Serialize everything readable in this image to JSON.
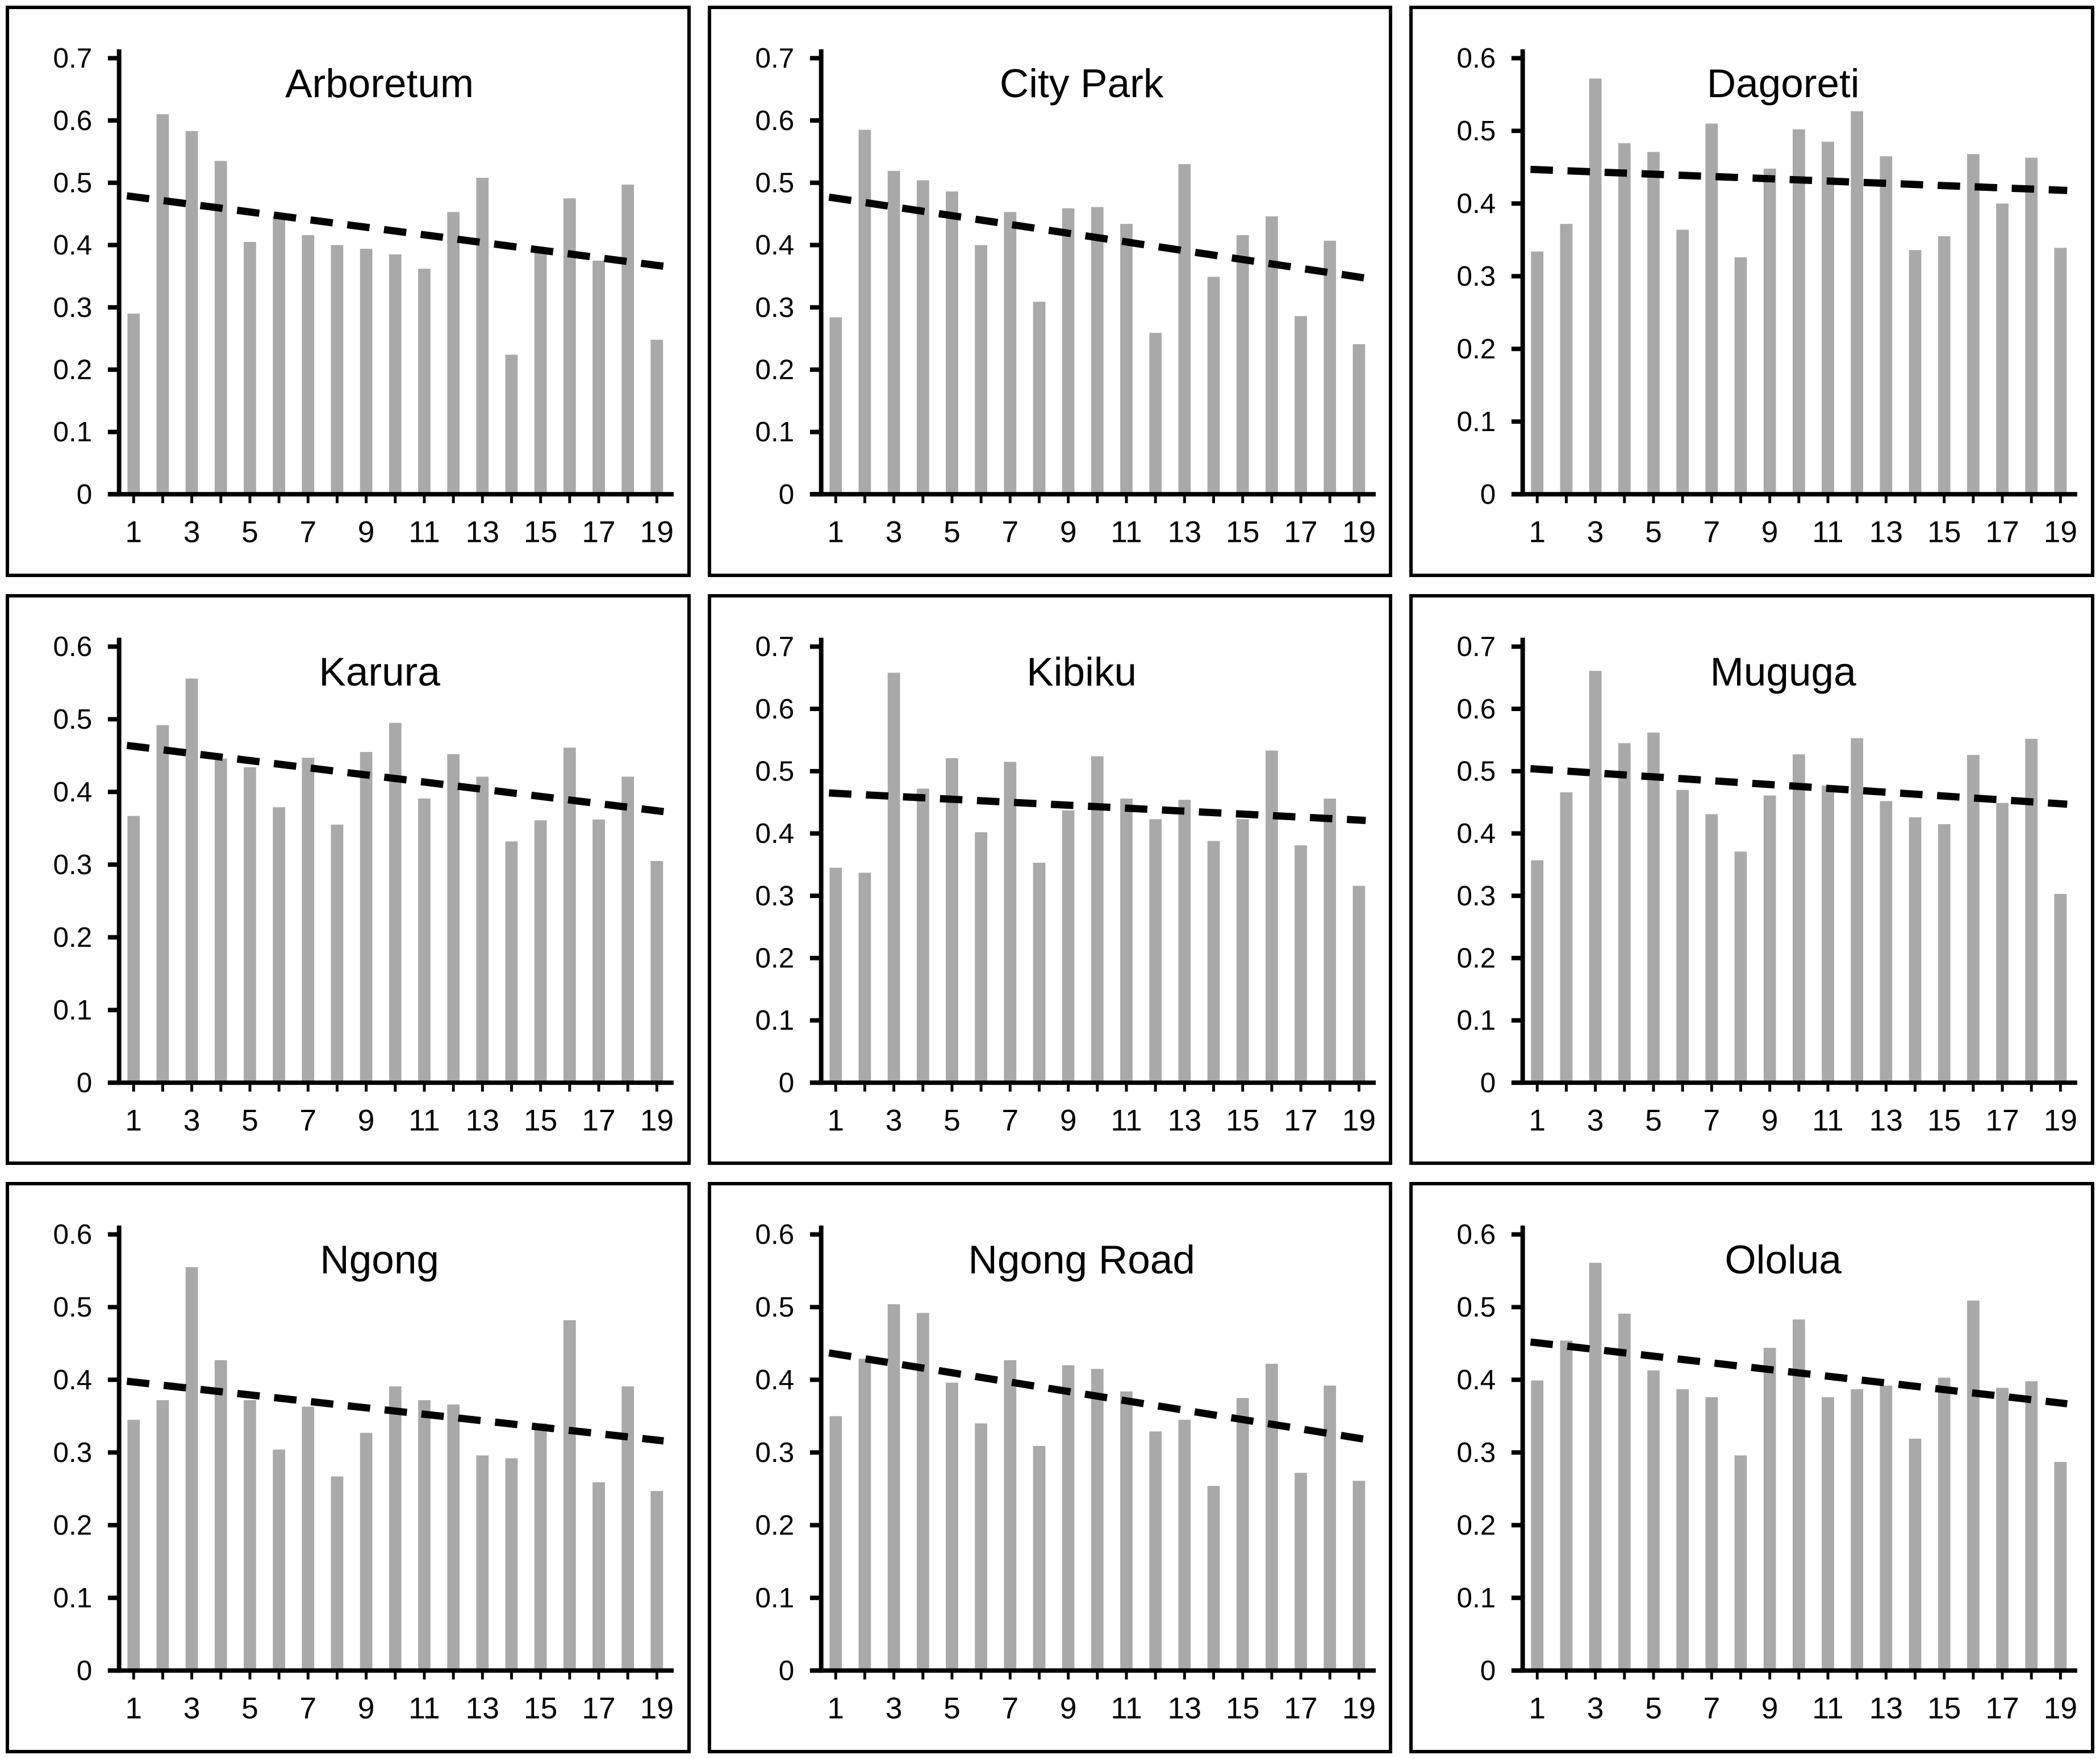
{
  "style": {
    "background": "#ffffff",
    "bar_color": "#a9a9a9",
    "axis_color": "#000000",
    "text_color": "#000000",
    "trendline_color": "#000000",
    "panel_border_color": "#000000"
  },
  "chart_data": [
    {
      "type": "bar",
      "title": "Arboretum",
      "categories": [
        1,
        2,
        3,
        4,
        5,
        6,
        7,
        8,
        9,
        10,
        11,
        12,
        13,
        14,
        15,
        16,
        17,
        18,
        19
      ],
      "values": [
        0.29,
        0.61,
        0.583,
        0.535,
        0.405,
        0.445,
        0.416,
        0.4,
        0.394,
        0.385,
        0.362,
        0.453,
        0.508,
        0.224,
        0.39,
        0.475,
        0.375,
        0.497,
        0.248
      ],
      "xtick_labels": [
        1,
        3,
        5,
        7,
        9,
        11,
        13,
        15,
        17,
        19
      ],
      "ylim": [
        0,
        0.7
      ],
      "ytick_interval": 0.1,
      "grid": false,
      "legend": "none",
      "trendline": {
        "style": "dashed",
        "start_y": 0.479,
        "end_y": 0.366
      }
    },
    {
      "type": "bar",
      "title": "City Park",
      "categories": [
        1,
        2,
        3,
        4,
        5,
        6,
        7,
        8,
        9,
        10,
        11,
        12,
        13,
        14,
        15,
        16,
        17,
        18,
        19
      ],
      "values": [
        0.284,
        0.585,
        0.519,
        0.504,
        0.486,
        0.4,
        0.453,
        0.309,
        0.459,
        0.461,
        0.434,
        0.259,
        0.53,
        0.349,
        0.416,
        0.446,
        0.286,
        0.407,
        0.241
      ],
      "xtick_labels": [
        1,
        3,
        5,
        7,
        9,
        11,
        13,
        15,
        17,
        19
      ],
      "ylim": [
        0,
        0.7
      ],
      "ytick_interval": 0.1,
      "grid": false,
      "legend": "none",
      "trendline": {
        "style": "dashed",
        "start_y": 0.477,
        "end_y": 0.347
      }
    },
    {
      "type": "bar",
      "title": "Dagoreti",
      "categories": [
        1,
        2,
        3,
        4,
        5,
        6,
        7,
        8,
        9,
        10,
        11,
        12,
        13,
        14,
        15,
        16,
        17,
        18,
        19
      ],
      "values": [
        0.334,
        0.372,
        0.572,
        0.483,
        0.471,
        0.364,
        0.51,
        0.326,
        0.448,
        0.502,
        0.485,
        0.527,
        0.465,
        0.336,
        0.355,
        0.468,
        0.4,
        0.463,
        0.339
      ],
      "xtick_labels": [
        1,
        3,
        5,
        7,
        9,
        11,
        13,
        15,
        17,
        19
      ],
      "ylim": [
        0,
        0.6
      ],
      "ytick_interval": 0.1,
      "grid": false,
      "legend": "none",
      "trendline": {
        "style": "dashed",
        "start_y": 0.447,
        "end_y": 0.418
      }
    },
    {
      "type": "bar",
      "title": "Karura",
      "categories": [
        1,
        2,
        3,
        4,
        5,
        6,
        7,
        8,
        9,
        10,
        11,
        12,
        13,
        14,
        15,
        16,
        17,
        18,
        19
      ],
      "values": [
        0.367,
        0.492,
        0.556,
        0.446,
        0.434,
        0.379,
        0.447,
        0.355,
        0.455,
        0.495,
        0.391,
        0.452,
        0.421,
        0.332,
        0.361,
        0.461,
        0.362,
        0.421,
        0.305
      ],
      "xtick_labels": [
        1,
        3,
        5,
        7,
        9,
        11,
        13,
        15,
        17,
        19
      ],
      "ylim": [
        0,
        0.6
      ],
      "ytick_interval": 0.1,
      "grid": false,
      "legend": "none",
      "trendline": {
        "style": "dashed",
        "start_y": 0.464,
        "end_y": 0.373
      }
    },
    {
      "type": "bar",
      "title": "Kibiku",
      "categories": [
        1,
        2,
        3,
        4,
        5,
        6,
        7,
        8,
        9,
        10,
        11,
        12,
        13,
        14,
        15,
        16,
        17,
        18,
        19
      ],
      "values": [
        0.345,
        0.337,
        0.658,
        0.472,
        0.521,
        0.402,
        0.515,
        0.353,
        0.437,
        0.524,
        0.456,
        0.423,
        0.454,
        0.388,
        0.423,
        0.533,
        0.381,
        0.456,
        0.316
      ],
      "xtick_labels": [
        1,
        3,
        5,
        7,
        9,
        11,
        13,
        15,
        17,
        19
      ],
      "ylim": [
        0,
        0.7
      ],
      "ytick_interval": 0.1,
      "grid": false,
      "legend": "none",
      "trendline": {
        "style": "dashed",
        "start_y": 0.465,
        "end_y": 0.421
      }
    },
    {
      "type": "bar",
      "title": "Muguga",
      "categories": [
        1,
        2,
        3,
        4,
        5,
        6,
        7,
        8,
        9,
        10,
        11,
        12,
        13,
        14,
        15,
        16,
        17,
        18,
        19
      ],
      "values": [
        0.357,
        0.466,
        0.661,
        0.545,
        0.562,
        0.47,
        0.431,
        0.371,
        0.461,
        0.527,
        0.477,
        0.553,
        0.452,
        0.426,
        0.415,
        0.526,
        0.449,
        0.552,
        0.303
      ],
      "xtick_labels": [
        1,
        3,
        5,
        7,
        9,
        11,
        13,
        15,
        17,
        19
      ],
      "ylim": [
        0,
        0.7
      ],
      "ytick_interval": 0.1,
      "grid": false,
      "legend": "none",
      "trendline": {
        "style": "dashed",
        "start_y": 0.504,
        "end_y": 0.447
      }
    },
    {
      "type": "bar",
      "title": "Ngong",
      "categories": [
        1,
        2,
        3,
        4,
        5,
        6,
        7,
        8,
        9,
        10,
        11,
        12,
        13,
        14,
        15,
        16,
        17,
        18,
        19
      ],
      "values": [
        0.345,
        0.372,
        0.555,
        0.427,
        0.372,
        0.304,
        0.363,
        0.267,
        0.327,
        0.391,
        0.372,
        0.366,
        0.296,
        0.292,
        0.34,
        0.482,
        0.259,
        0.391,
        0.247
      ],
      "xtick_labels": [
        1,
        3,
        5,
        7,
        9,
        11,
        13,
        15,
        17,
        19
      ],
      "ylim": [
        0,
        0.6
      ],
      "ytick_interval": 0.1,
      "grid": false,
      "legend": "none",
      "trendline": {
        "style": "dashed",
        "start_y": 0.398,
        "end_y": 0.316
      }
    },
    {
      "type": "bar",
      "title": "Ngong Road",
      "categories": [
        1,
        2,
        3,
        4,
        5,
        6,
        7,
        8,
        9,
        10,
        11,
        12,
        13,
        14,
        15,
        16,
        17,
        18,
        19
      ],
      "values": [
        0.35,
        0.429,
        0.504,
        0.492,
        0.396,
        0.34,
        0.427,
        0.309,
        0.42,
        0.415,
        0.384,
        0.329,
        0.345,
        0.254,
        0.375,
        0.422,
        0.272,
        0.392,
        0.261
      ],
      "xtick_labels": [
        1,
        3,
        5,
        7,
        9,
        11,
        13,
        15,
        17,
        19
      ],
      "ylim": [
        0,
        0.6
      ],
      "ytick_interval": 0.1,
      "grid": false,
      "legend": "none",
      "trendline": {
        "style": "dashed",
        "start_y": 0.437,
        "end_y": 0.318
      }
    },
    {
      "type": "bar",
      "title": "Ololua",
      "categories": [
        1,
        2,
        3,
        4,
        5,
        6,
        7,
        8,
        9,
        10,
        11,
        12,
        13,
        14,
        15,
        16,
        17,
        18,
        19
      ],
      "values": [
        0.399,
        0.454,
        0.561,
        0.491,
        0.413,
        0.387,
        0.376,
        0.296,
        0.444,
        0.483,
        0.376,
        0.387,
        0.392,
        0.319,
        0.403,
        0.509,
        0.389,
        0.398,
        0.287
      ],
      "xtick_labels": [
        1,
        3,
        5,
        7,
        9,
        11,
        13,
        15,
        17,
        19
      ],
      "ylim": [
        0,
        0.6
      ],
      "ytick_interval": 0.1,
      "grid": false,
      "legend": "none",
      "trendline": {
        "style": "dashed",
        "start_y": 0.452,
        "end_y": 0.367
      }
    }
  ]
}
